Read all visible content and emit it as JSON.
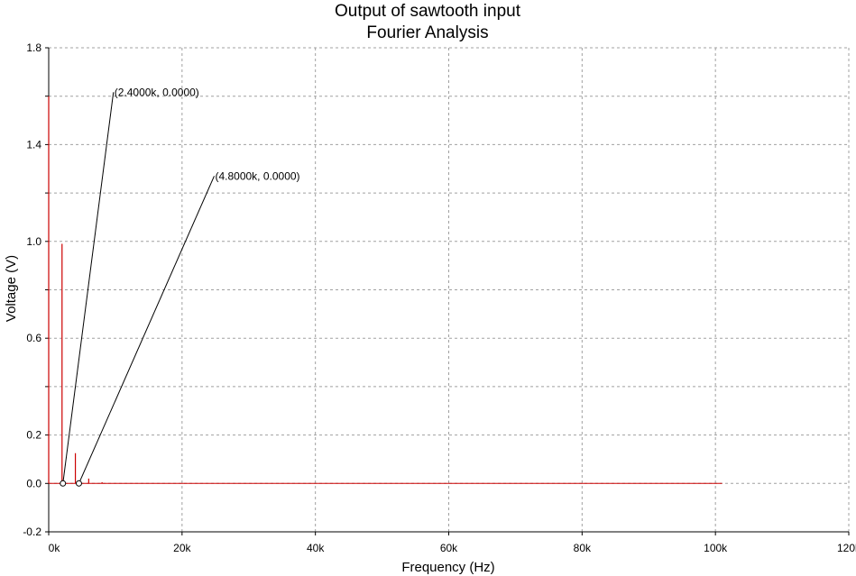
{
  "chart_data": {
    "type": "bar",
    "title": "Output of sawtooth input",
    "subtitle": "Fourier Analysis",
    "xlabel": "Frequency (Hz)",
    "ylabel": "Voltage (V)",
    "xlim": [
      0,
      120000
    ],
    "ylim": [
      -0.2,
      1.8
    ],
    "x_ticks": [
      0,
      20000,
      40000,
      60000,
      80000,
      100000,
      120000
    ],
    "x_tick_labels": [
      "0k",
      "20k",
      "40k",
      "60k",
      "80k",
      "100k",
      "120k"
    ],
    "y_ticks": [
      1.8,
      1.4,
      1.0,
      0.6,
      0.2,
      0.0,
      -0.2
    ],
    "y_tick_labels": [
      "1.8",
      "1.4",
      "1.0",
      "0.6",
      "0.2",
      "0.0",
      "-0.2"
    ],
    "y_grid": [
      1.8,
      1.6,
      1.4,
      1.2,
      1.0,
      0.8,
      0.6,
      0.4,
      0.2,
      0.0,
      -0.2
    ],
    "grid": true,
    "color": "#cc0000",
    "baseline_end": 101000,
    "series": [
      {
        "x": [
          0,
          2000,
          4000,
          6000,
          8000
        ],
        "values": [
          1.6,
          0.99,
          0.125,
          0.02,
          0.005
        ]
      }
    ],
    "annotations": [
      {
        "text": "(2.4000k, 0.0000)",
        "x": 2400,
        "y": 0.0
      },
      {
        "text": "(4.8000k, 0.0000)",
        "x": 4800,
        "y": 0.0
      }
    ]
  }
}
